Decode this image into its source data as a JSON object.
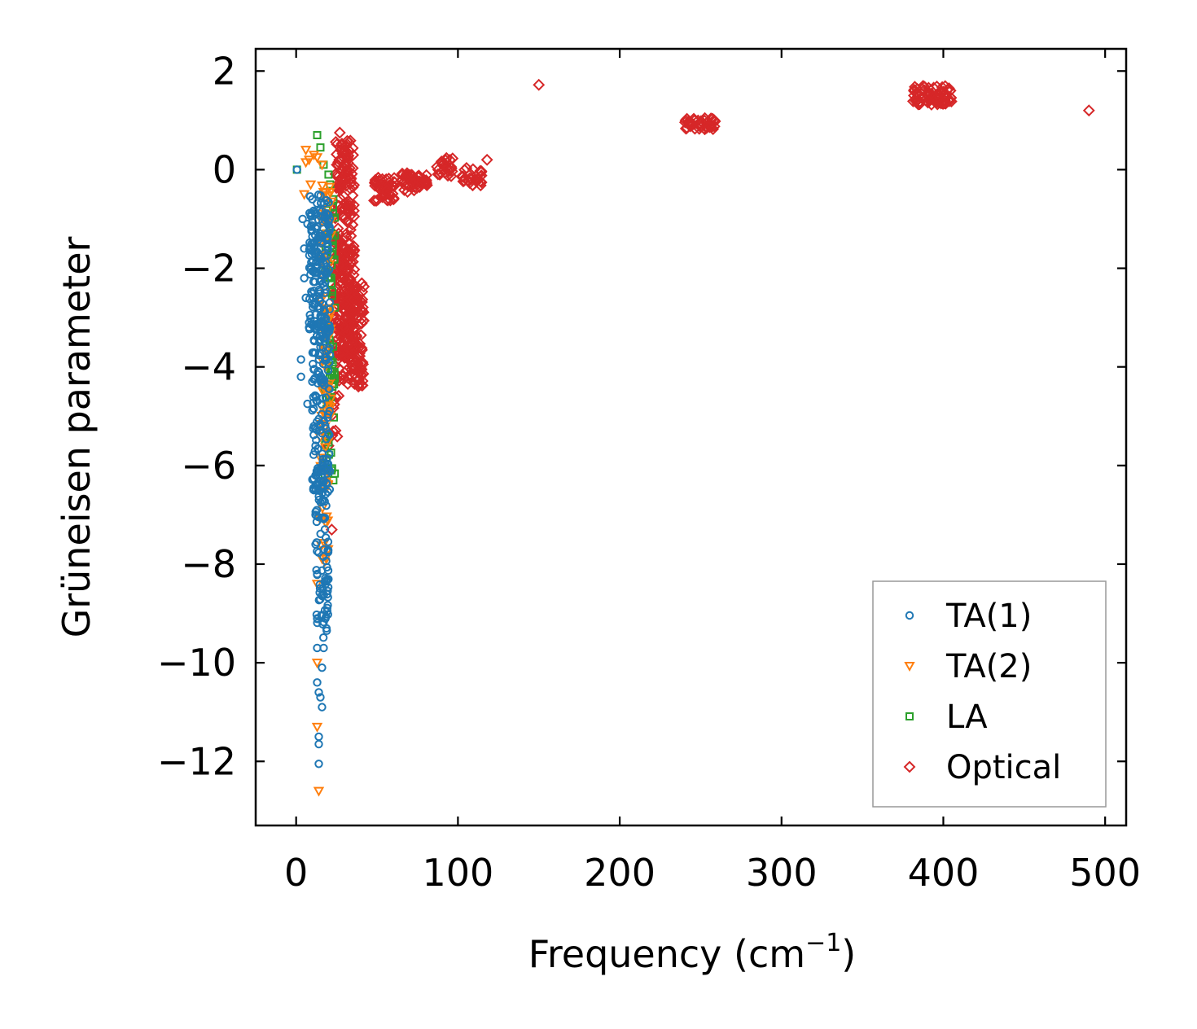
{
  "chart_data": {
    "type": "scatter",
    "title": "",
    "xlabel": "Frequency (cm",
    "xlabel_sup": "−1",
    "xlabel_close": ")",
    "ylabel": "Grüneisen parameter",
    "xlim": [
      -25,
      513
    ],
    "ylim": [
      -13.3,
      2.45
    ],
    "xticks": [
      0,
      100,
      200,
      300,
      400,
      500
    ],
    "xtick_labels": [
      "0",
      "100",
      "200",
      "300",
      "400",
      "500"
    ],
    "yticks": [
      2,
      0,
      -2,
      -4,
      -6,
      -8,
      -10,
      -12
    ],
    "ytick_labels": [
      "2",
      "0",
      "−2",
      "−4",
      "−6",
      "−8",
      "−10",
      "−12"
    ],
    "grid": false,
    "legend_position": "lower-right",
    "series": [
      {
        "name": "TA(1)",
        "color": "#1f77b4",
        "marker": "circle",
        "points": [
          [
            0.5,
            0.0
          ],
          [
            4,
            -1.0
          ],
          [
            5,
            -1.6
          ],
          [
            5,
            -2.2
          ],
          [
            6,
            -2.6
          ],
          [
            7,
            -1.1
          ],
          [
            8,
            -3.2
          ],
          [
            3,
            -3.85
          ],
          [
            3,
            -4.2
          ],
          [
            7,
            -4.75
          ],
          [
            10,
            -0.6
          ],
          [
            10,
            -4.3
          ],
          [
            11,
            -5.2
          ],
          [
            11,
            -6.5
          ],
          [
            12,
            -5.6
          ],
          [
            12,
            -6.4
          ],
          [
            12,
            -7.0
          ],
          [
            12,
            -7.6
          ],
          [
            13,
            -8.2
          ],
          [
            13,
            -9.1
          ],
          [
            13,
            -9.7
          ],
          [
            13,
            -10.4
          ],
          [
            14,
            -10.6
          ],
          [
            14,
            -11.5
          ],
          [
            14,
            -11.65
          ],
          [
            14,
            -12.05
          ],
          [
            15,
            -3.3
          ],
          [
            15,
            -10.7
          ],
          [
            16,
            -10.9
          ],
          [
            16,
            -10.1
          ],
          [
            17,
            -9.7
          ]
        ],
        "clusters": [
          {
            "x_range": [
              8,
              21
            ],
            "y_range": [
              -3.5,
              -0.5
            ],
            "n": 170
          },
          {
            "x_range": [
              10,
              21
            ],
            "y_range": [
              -6.5,
              -3.0
            ],
            "n": 130
          },
          {
            "x_range": [
              12,
              20
            ],
            "y_range": [
              -9.5,
              -6.0
            ],
            "n": 90
          }
        ]
      },
      {
        "name": "TA(2)",
        "color": "#ff7f0e",
        "marker": "triangle-down",
        "points": [
          [
            6,
            0.4
          ],
          [
            6,
            0.15
          ],
          [
            8,
            0.2
          ],
          [
            11,
            0.3
          ],
          [
            13,
            0.25
          ],
          [
            16,
            0.1
          ],
          [
            5,
            -0.5
          ],
          [
            9,
            -0.3
          ],
          [
            13,
            -8.4
          ],
          [
            13,
            -10.0
          ],
          [
            13,
            -11.3
          ],
          [
            14,
            -12.6
          ],
          [
            18,
            -2.5
          ],
          [
            18,
            -4.0
          ],
          [
            21,
            -5.0
          ]
        ],
        "clusters": [
          {
            "x_range": [
              15,
              22
            ],
            "y_range": [
              -5.0,
              -0.3
            ],
            "n": 70
          },
          {
            "x_range": [
              14,
              20
            ],
            "y_range": [
              -8.0,
              -5.0
            ],
            "n": 25
          }
        ]
      },
      {
        "name": "LA",
        "color": "#2ca02c",
        "marker": "square",
        "points": [
          [
            0.5,
            0.0
          ],
          [
            13,
            0.7
          ],
          [
            15,
            0.45
          ],
          [
            17,
            0.1
          ],
          [
            20,
            -0.1
          ],
          [
            21,
            -0.3
          ],
          [
            23,
            -0.6
          ],
          [
            23,
            -6.3
          ]
        ],
        "clusters": [
          {
            "x_range": [
              17,
              24
            ],
            "y_range": [
              -6.2,
              -0.2
            ],
            "n": 80
          }
        ]
      },
      {
        "name": "Optical",
        "color": "#d62728",
        "marker": "diamond",
        "points": [
          [
            27,
            0.75
          ],
          [
            118,
            0.2
          ],
          [
            150,
            1.72
          ],
          [
            490,
            1.2
          ],
          [
            20,
            -5.6
          ],
          [
            22,
            -7.3
          ]
        ],
        "clusters": [
          {
            "x_range": [
              24,
              36
            ],
            "y_range": [
              -3.8,
              0.6
            ],
            "n": 260
          },
          {
            "x_range": [
              29,
              42
            ],
            "y_range": [
              -4.4,
              -2.3
            ],
            "n": 140
          },
          {
            "x_range": [
              22,
              27
            ],
            "y_range": [
              -5.5,
              -1.0
            ],
            "n": 40
          },
          {
            "x_range": [
              48,
              61
            ],
            "y_range": [
              -0.65,
              -0.15
            ],
            "n": 45
          },
          {
            "x_range": [
              65,
              82
            ],
            "y_range": [
              -0.45,
              -0.05
            ],
            "n": 40
          },
          {
            "x_range": [
              87,
              97
            ],
            "y_range": [
              -0.15,
              0.25
            ],
            "n": 25
          },
          {
            "x_range": [
              102,
              115
            ],
            "y_range": [
              -0.35,
              0.05
            ],
            "n": 25
          },
          {
            "x_range": [
              240,
              260
            ],
            "y_range": [
              0.82,
              1.05
            ],
            "n": 45
          },
          {
            "x_range": [
              381,
              405
            ],
            "y_range": [
              1.32,
              1.7
            ],
            "n": 70
          }
        ]
      }
    ]
  }
}
